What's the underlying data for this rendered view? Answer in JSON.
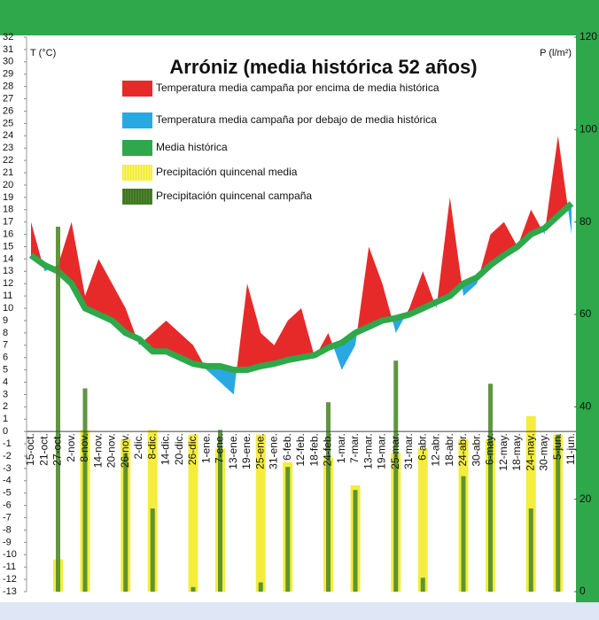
{
  "chart_data": {
    "type": "line",
    "title": "Arróniz (media histórica 52 años)",
    "y_label": "T (°C)",
    "y2_label": "P (l/m²)",
    "categories": [
      "15-oct.",
      "21-oct.",
      "27-oct.",
      "2-nov.",
      "8-nov.",
      "14-nov.",
      "20-nov.",
      "26-nov.",
      "2-dic.",
      "8-dic.",
      "14-dic.",
      "20-dic.",
      "26-dic.",
      "1-ene.",
      "7-ene.",
      "13-ene.",
      "19-ene.",
      "25-ene.",
      "31-ene.",
      "6-feb.",
      "12-feb.",
      "18-feb.",
      "24-feb.",
      "1-mar.",
      "7-mar.",
      "13-mar.",
      "19-mar.",
      "25-mar.",
      "31-mar.",
      "6-abr.",
      "12-abr.",
      "18-abr.",
      "24-abr.",
      "30-abr.",
      "6-may.",
      "12-may.",
      "18-may.",
      "24-may.",
      "30-may.",
      "5-jun.",
      "11-jun."
    ],
    "series": [
      {
        "name": "Temperatura media campaña por encima de media histórica",
        "color": "#e62a2a",
        "name_below": "Temperatura media campaña por debajo de media histórica",
        "color_below": "#2aa8e2",
        "values": [
          17,
          13,
          13.5,
          17,
          11,
          14,
          12,
          10,
          7,
          8,
          9,
          8,
          7,
          5,
          4,
          3,
          12,
          8,
          7,
          9,
          10,
          6,
          8,
          5,
          7,
          15,
          12,
          8,
          10,
          13,
          10,
          19,
          11,
          12,
          16,
          17,
          15,
          18,
          16,
          24,
          16
        ]
      },
      {
        "name": "Media histórica",
        "color": "#2ea84a",
        "values": [
          14.3,
          13.5,
          13,
          12,
          10,
          9.5,
          9,
          8,
          7.5,
          6.5,
          6.5,
          6,
          5.5,
          5.3,
          5.3,
          5,
          5,
          5.3,
          5.5,
          5.8,
          6,
          6.2,
          6.8,
          7.2,
          8,
          8.5,
          9,
          9.2,
          9.5,
          10,
          10.5,
          11,
          12,
          12.5,
          13.5,
          14.3,
          15,
          16,
          16.5,
          17.5,
          18.5
        ]
      },
      {
        "name": "Precipitación quincenal media",
        "color": "#f2ea1c",
        "axis": "y2",
        "values": [
          null,
          null,
          7,
          null,
          35,
          null,
          null,
          33,
          null,
          35,
          null,
          null,
          34,
          null,
          31,
          null,
          null,
          34,
          null,
          28,
          null,
          null,
          29,
          null,
          23,
          null,
          null,
          30,
          null,
          31,
          null,
          null,
          33,
          null,
          33,
          null,
          null,
          38,
          null,
          34,
          null
        ]
      },
      {
        "name": "Precipitación quincenal campaña",
        "color": "#4f8a2e",
        "axis": "y2",
        "values": [
          null,
          null,
          79,
          null,
          44,
          null,
          null,
          30,
          null,
          18,
          null,
          null,
          1,
          null,
          35,
          null,
          null,
          2,
          null,
          27,
          null,
          null,
          41,
          null,
          22,
          null,
          null,
          50,
          null,
          3,
          null,
          null,
          25,
          null,
          45,
          null,
          null,
          18,
          null,
          34,
          null
        ]
      }
    ],
    "ylim": [
      -13,
      32
    ],
    "yticks": [
      -13,
      -12,
      -11,
      -10,
      -9,
      -8,
      -7,
      -6,
      -5,
      -4,
      -3,
      -2,
      -1,
      0,
      1,
      2,
      3,
      4,
      5,
      6,
      7,
      8,
      9,
      10,
      11,
      12,
      13,
      14,
      15,
      16,
      17,
      18,
      19,
      20,
      21,
      22,
      23,
      24,
      25,
      26,
      27,
      28,
      29,
      30,
      31,
      32
    ],
    "y2lim": [
      0,
      120
    ],
    "y2ticks": [
      0,
      20,
      40,
      60,
      80,
      100,
      120
    ]
  }
}
